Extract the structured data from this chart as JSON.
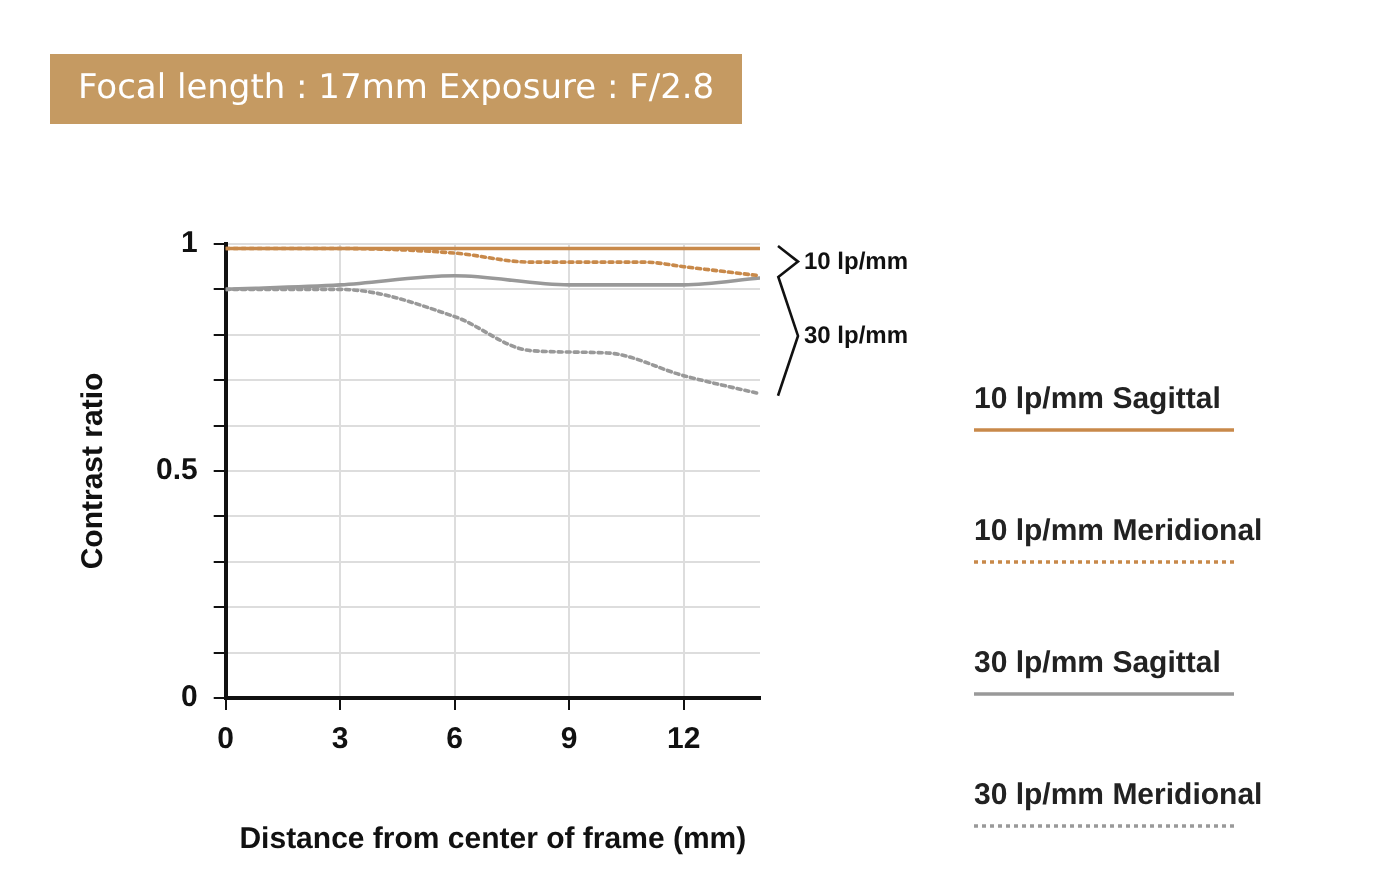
{
  "chart_data": {
    "type": "line",
    "title": "Focal length : 17mm Exposure : F/2.8",
    "xlabel": "Distance from center of frame (mm)",
    "ylabel": "Contrast ratio",
    "xlim": [
      0,
      14
    ],
    "xticks": [
      0,
      3,
      6,
      9,
      12
    ],
    "ylim": [
      0,
      1
    ],
    "yticks": [
      0,
      {
        "value": 0.1,
        "label": null
      },
      {
        "value": 0.2,
        "label": null
      },
      {
        "value": 0.3,
        "label": null
      },
      {
        "value": 0.4,
        "label": null
      },
      0.5,
      {
        "value": 0.6,
        "label": null
      },
      {
        "value": 0.7,
        "label": null
      },
      {
        "value": 0.8,
        "label": null
      },
      {
        "value": 0.9,
        "label": null
      },
      1
    ],
    "grid": true,
    "legend": "right",
    "marker": "none",
    "annotations": [
      "10 lp/mm",
      "30 lp/mm"
    ],
    "series": [
      {
        "name": "10 lp/mm Sagittal",
        "color": "#c8894a",
        "line_style": "solid",
        "x": [
          0,
          3,
          6,
          9,
          12,
          14
        ],
        "values": [
          0.99,
          0.99,
          0.99,
          0.99,
          0.99,
          0.99
        ]
      },
      {
        "name": "10 lp/mm Meridional",
        "color": "#c8894a",
        "line_style": "dotted",
        "x": [
          0,
          3,
          6,
          8,
          9,
          10,
          11,
          12,
          14
        ],
        "values": [
          0.99,
          0.99,
          0.98,
          0.96,
          0.96,
          0.96,
          0.96,
          0.95,
          0.93
        ]
      },
      {
        "name": "30 lp/mm Sagittal",
        "color": "#999999",
        "line_style": "solid",
        "x": [
          0,
          3,
          6,
          9,
          12,
          14
        ],
        "values": [
          0.9,
          0.91,
          0.93,
          0.91,
          0.91,
          0.925
        ]
      },
      {
        "name": "30 lp/mm Meridional",
        "color": "#999999",
        "line_style": "dotted",
        "x": [
          0,
          3,
          6,
          8,
          10,
          12,
          14
        ],
        "values": [
          0.9,
          0.9,
          0.84,
          0.765,
          0.76,
          0.71,
          0.67
        ]
      }
    ]
  }
}
